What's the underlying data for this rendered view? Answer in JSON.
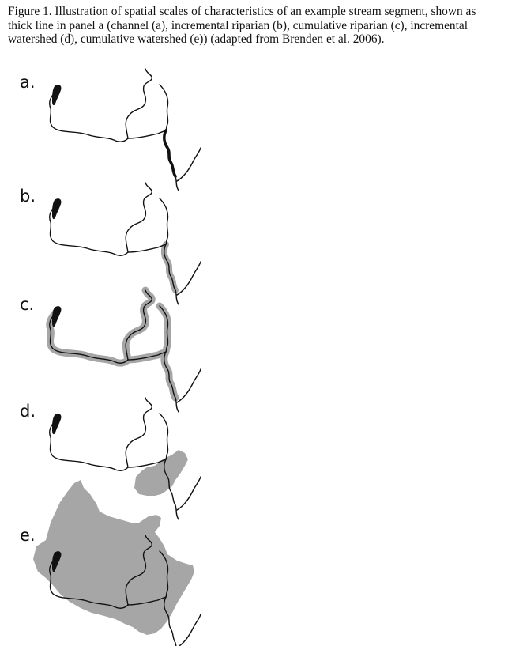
{
  "caption": {
    "lines": [
      "Figure 1. Illustration of spatial scales of characteristics of an example stream segment, shown as",
      "thick line in panel a (channel (a), incremental riparian (b), cumulative riparian (c), incremental",
      "watershed (d), cumulative watershed (e)) (adapted from Brenden et al. 2006)."
    ]
  },
  "panels": [
    {
      "id": "a",
      "label": "a.",
      "scale": "channel"
    },
    {
      "id": "b",
      "label": "b.",
      "scale": "incremental riparian"
    },
    {
      "id": "c",
      "label": "c.",
      "scale": "cumulative riparian"
    },
    {
      "id": "d",
      "label": "d.",
      "scale": "incremental watershed"
    },
    {
      "id": "e",
      "label": "e.",
      "scale": "cumulative watershed"
    }
  ],
  "colors": {
    "stream": "#111111",
    "highlight": "#a6a6a6",
    "background": "#ffffff"
  }
}
